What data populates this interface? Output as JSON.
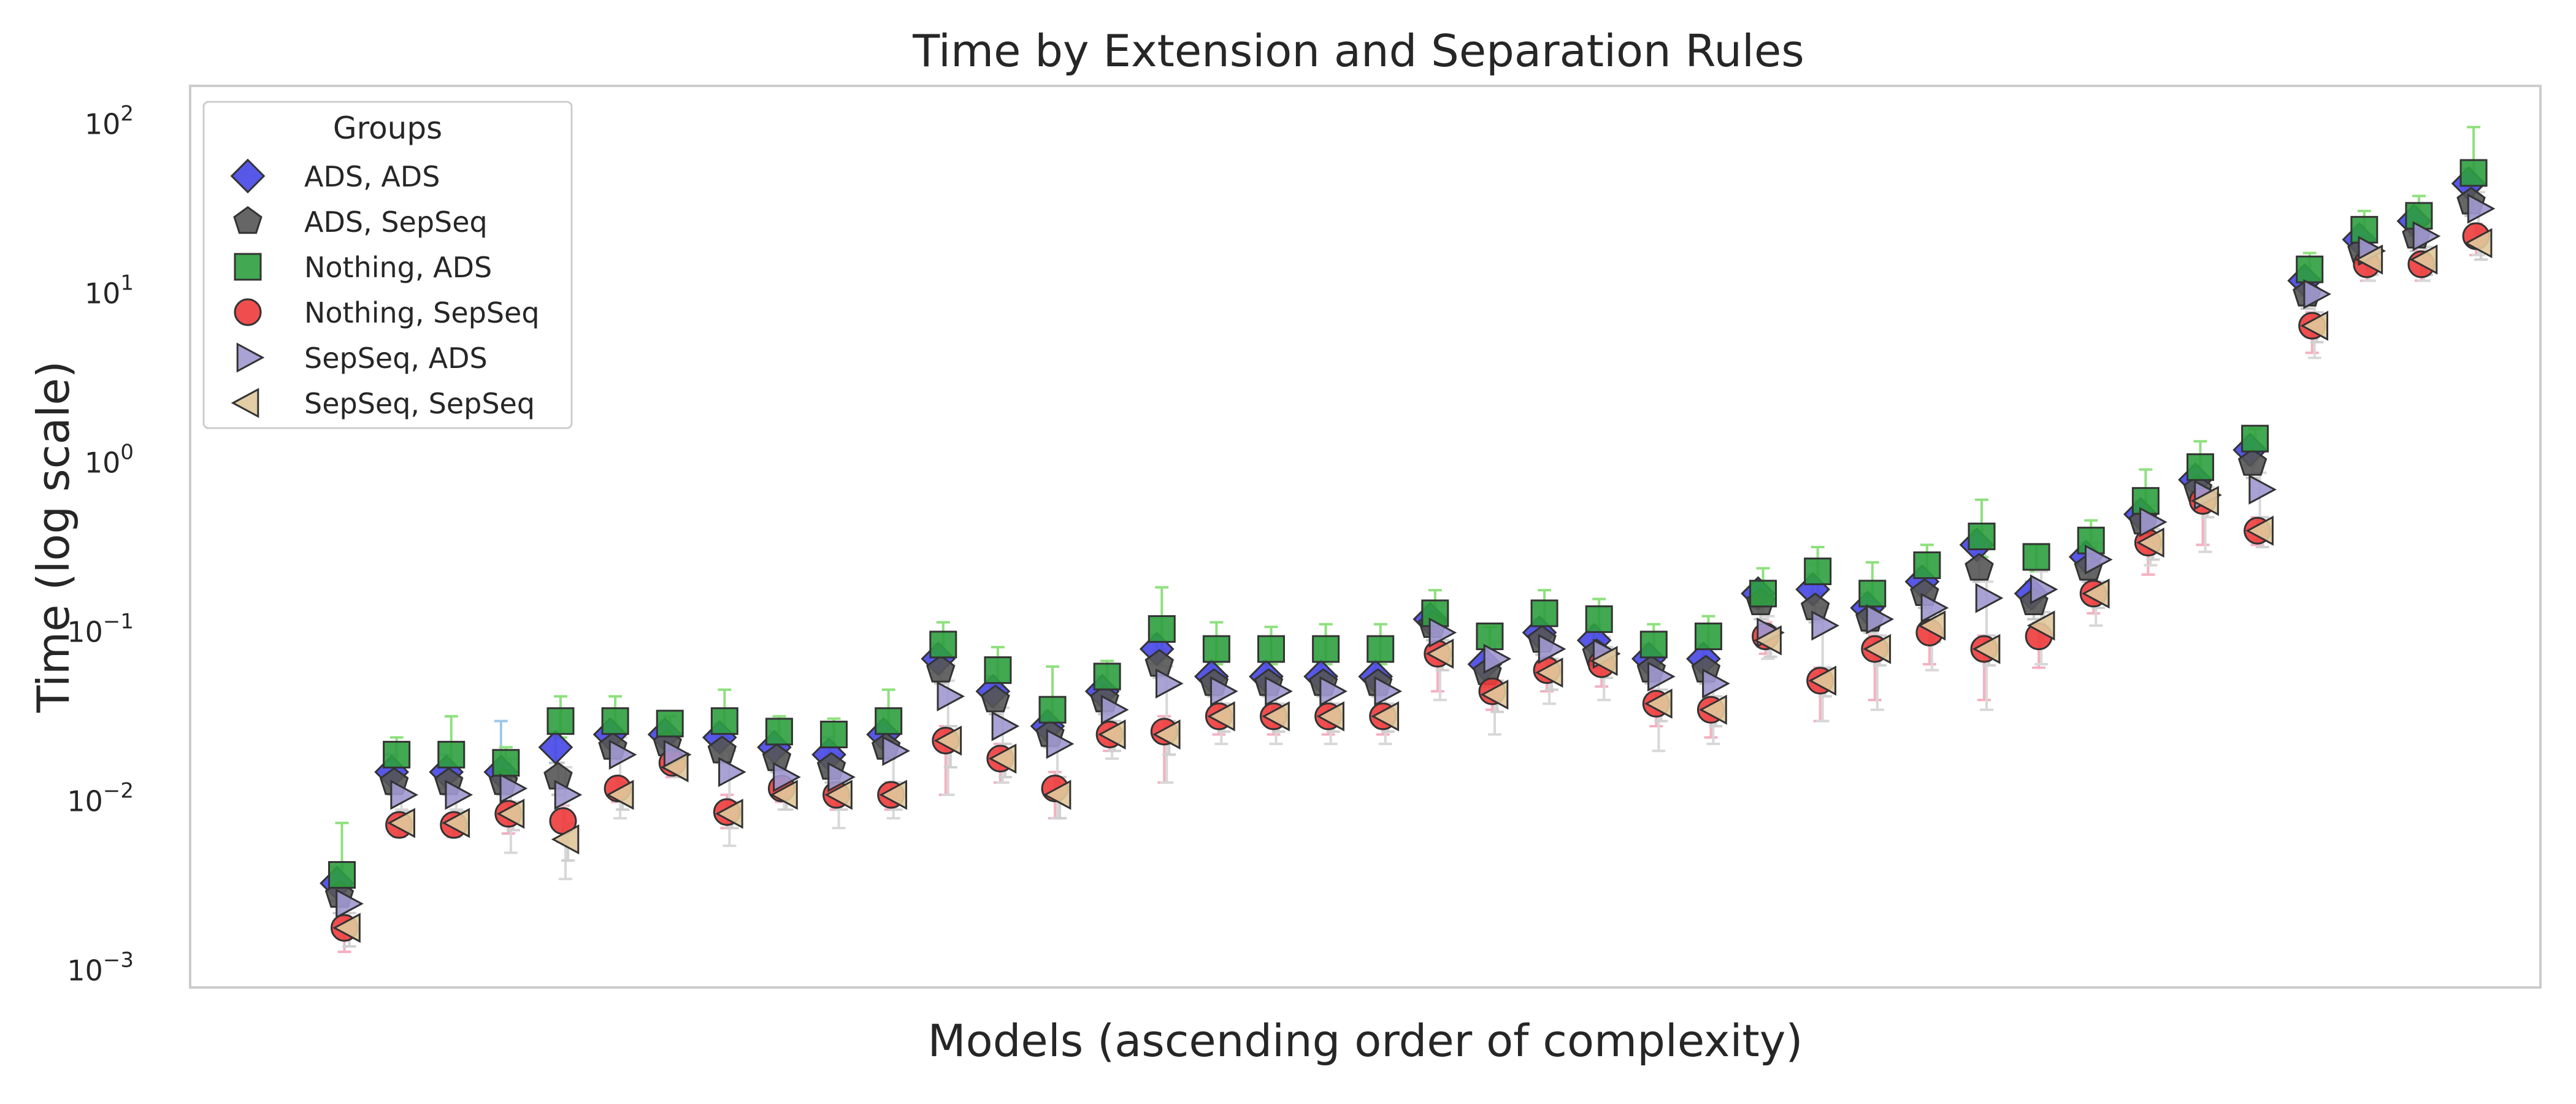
{
  "chart_data": {
    "type": "scatter",
    "title": "Time by Extension and Separation Rules",
    "xlabel": "Models (ascending order of complexity)",
    "ylabel": "Time (log scale)",
    "yscale": "log",
    "ylim": [
      0.0008,
      170
    ],
    "xlim": [
      -1.8,
      41.2
    ],
    "grid": false,
    "legend": {
      "title": "Groups",
      "placement": "top-left"
    },
    "y_ticks": [
      {
        "value": 0.001,
        "base": "10",
        "exp": "−3"
      },
      {
        "value": 0.01,
        "base": "10",
        "exp": "−2"
      },
      {
        "value": 0.1,
        "base": "10",
        "exp": "−1"
      },
      {
        "value": 1,
        "base": "10",
        "exp": "0"
      },
      {
        "value": 10,
        "base": "10",
        "exp": "1"
      },
      {
        "value": 100,
        "base": "10",
        "exp": "2"
      }
    ],
    "x": [
      1,
      2,
      3,
      4,
      5,
      6,
      7,
      8,
      9,
      10,
      11,
      12,
      13,
      14,
      15,
      16,
      17,
      18,
      19,
      20,
      21,
      22,
      23,
      24,
      25,
      26,
      27,
      28,
      29,
      30,
      31,
      32,
      33,
      34,
      35,
      36,
      37,
      38,
      39,
      40
    ],
    "series": [
      {
        "name": "ADS, ADS",
        "marker": "diamond",
        "color": "#4545e6",
        "errcolor": "#9ec8e8",
        "values": [
          0.0033,
          0.015,
          0.015,
          0.015,
          0.021,
          0.025,
          0.025,
          0.024,
          0.021,
          0.019,
          0.025,
          0.07,
          0.045,
          0.028,
          0.045,
          0.08,
          0.055,
          0.055,
          0.055,
          0.055,
          0.12,
          0.065,
          0.1,
          0.09,
          0.07,
          0.07,
          0.17,
          0.18,
          0.14,
          0.2,
          0.33,
          0.17,
          0.28,
          0.5,
          0.8,
          1.2,
          12,
          21,
          27,
          45
        ],
        "err_low": [
          0.0026,
          0.012,
          0.012,
          0.012,
          0.017,
          0.021,
          0.021,
          0.02,
          0.017,
          0.015,
          0.021,
          0.058,
          0.037,
          0.023,
          0.037,
          0.065,
          0.046,
          0.046,
          0.046,
          0.046,
          0.1,
          0.054,
          0.083,
          0.074,
          0.058,
          0.058,
          0.14,
          0.15,
          0.115,
          0.165,
          0.27,
          0.14,
          0.23,
          0.41,
          0.66,
          0.98,
          9.8,
          17,
          22,
          37
        ],
        "err_high": [
          0.0041,
          0.019,
          0.019,
          0.03,
          0.026,
          0.03,
          0.03,
          0.029,
          0.026,
          0.024,
          0.03,
          0.085,
          0.055,
          0.034,
          0.055,
          0.097,
          0.067,
          0.067,
          0.067,
          0.067,
          0.145,
          0.08,
          0.12,
          0.11,
          0.085,
          0.085,
          0.2,
          0.22,
          0.17,
          0.24,
          0.4,
          0.2,
          0.34,
          0.6,
          0.97,
          1.45,
          14.5,
          25,
          33,
          55
        ]
      },
      {
        "name": "ADS, SepSeq",
        "marker": "pentagon",
        "color": "#555555",
        "errcolor": "#c8c8c8",
        "values": [
          0.0028,
          0.013,
          0.013,
          0.013,
          0.014,
          0.021,
          0.022,
          0.02,
          0.018,
          0.016,
          0.021,
          0.06,
          0.04,
          0.025,
          0.04,
          0.065,
          0.05,
          0.05,
          0.05,
          0.05,
          0.11,
          0.058,
          0.09,
          0.075,
          0.06,
          0.06,
          0.15,
          0.14,
          0.12,
          0.17,
          0.24,
          0.15,
          0.24,
          0.45,
          0.7,
          1.0,
          10,
          18,
          22,
          35
        ],
        "err_low": [
          0.0022,
          0.011,
          0.011,
          0.011,
          0.011,
          0.018,
          0.018,
          0.017,
          0.015,
          0.013,
          0.018,
          0.05,
          0.033,
          0.021,
          0.033,
          0.054,
          0.042,
          0.042,
          0.042,
          0.042,
          0.09,
          0.048,
          0.074,
          0.062,
          0.05,
          0.05,
          0.12,
          0.115,
          0.1,
          0.14,
          0.2,
          0.12,
          0.2,
          0.37,
          0.58,
          0.82,
          8.2,
          15,
          18,
          29
        ],
        "err_high": [
          0.0034,
          0.016,
          0.016,
          0.016,
          0.017,
          0.025,
          0.027,
          0.024,
          0.022,
          0.019,
          0.025,
          0.072,
          0.048,
          0.03,
          0.048,
          0.078,
          0.06,
          0.06,
          0.06,
          0.06,
          0.13,
          0.07,
          0.108,
          0.09,
          0.072,
          0.072,
          0.18,
          0.17,
          0.145,
          0.2,
          0.29,
          0.18,
          0.29,
          0.54,
          0.84,
          1.2,
          12,
          22,
          27,
          42
        ]
      },
      {
        "name": "Nothing, ADS",
        "marker": "square",
        "color": "#2e9e3e",
        "errcolor": "#8ee07e",
        "values": [
          0.0037,
          0.019,
          0.019,
          0.017,
          0.03,
          0.03,
          0.029,
          0.03,
          0.026,
          0.025,
          0.03,
          0.085,
          0.06,
          0.035,
          0.055,
          0.105,
          0.08,
          0.08,
          0.08,
          0.08,
          0.13,
          0.095,
          0.13,
          0.12,
          0.085,
          0.095,
          0.17,
          0.23,
          0.17,
          0.25,
          0.37,
          0.28,
          0.35,
          0.6,
          0.95,
          1.4,
          14,
          24,
          29,
          52
        ],
        "err_low": [
          0.0025,
          0.015,
          0.015,
          0.014,
          0.024,
          0.024,
          0.024,
          0.024,
          0.021,
          0.021,
          0.025,
          0.07,
          0.048,
          0.028,
          0.045,
          0.07,
          0.065,
          0.065,
          0.065,
          0.065,
          0.1,
          0.08,
          0.1,
          0.095,
          0.07,
          0.08,
          0.13,
          0.17,
          0.13,
          0.2,
          0.28,
          0.23,
          0.29,
          0.48,
          0.75,
          1.15,
          11.5,
          20,
          24,
          30
        ],
        "err_high": [
          0.0075,
          0.024,
          0.032,
          0.021,
          0.042,
          0.042,
          0.032,
          0.046,
          0.032,
          0.031,
          0.046,
          0.115,
          0.082,
          0.063,
          0.068,
          0.185,
          0.115,
          0.108,
          0.112,
          0.112,
          0.178,
          0.108,
          0.178,
          0.158,
          0.112,
          0.125,
          0.24,
          0.32,
          0.26,
          0.33,
          0.61,
          0.33,
          0.46,
          0.92,
          1.35,
          1.6,
          17.5,
          31,
          38,
          97
        ]
      },
      {
        "name": "Nothing, SepSeq",
        "marker": "circle",
        "color": "#ee3b3b",
        "errcolor": "#f5b0c0",
        "values": [
          0.0018,
          0.0073,
          0.0073,
          0.0085,
          0.0077,
          0.012,
          0.017,
          0.0087,
          0.012,
          0.011,
          0.011,
          0.023,
          0.018,
          0.012,
          0.025,
          0.026,
          0.032,
          0.032,
          0.032,
          0.032,
          0.075,
          0.045,
          0.06,
          0.065,
          0.038,
          0.035,
          0.095,
          0.052,
          0.08,
          0.1,
          0.08,
          0.095,
          0.17,
          0.34,
          0.6,
          0.4,
          6.5,
          15,
          15,
          22
        ],
        "err_low": [
          0.0013,
          0.0062,
          0.0062,
          0.0065,
          0.0058,
          0.01,
          0.014,
          0.007,
          0.01,
          0.009,
          0.009,
          0.011,
          0.013,
          0.008,
          0.02,
          0.013,
          0.025,
          0.025,
          0.025,
          0.025,
          0.045,
          0.035,
          0.045,
          0.048,
          0.028,
          0.024,
          0.075,
          0.03,
          0.04,
          0.065,
          0.04,
          0.062,
          0.13,
          0.22,
          0.33,
          0.33,
          4.5,
          12,
          12,
          17
        ],
        "err_high": [
          0.0021,
          0.0085,
          0.0085,
          0.01,
          0.0095,
          0.014,
          0.02,
          0.011,
          0.014,
          0.013,
          0.013,
          0.028,
          0.022,
          0.015,
          0.03,
          0.032,
          0.038,
          0.038,
          0.038,
          0.038,
          0.09,
          0.054,
          0.072,
          0.078,
          0.046,
          0.042,
          0.115,
          0.062,
          0.096,
          0.12,
          0.096,
          0.114,
          0.2,
          0.41,
          0.72,
          0.48,
          7.8,
          18,
          18,
          26
        ]
      },
      {
        "name": "SepSeq, ADS",
        "marker": "triangle-right",
        "color": "#9f98d0",
        "errcolor": "#d8d8d8",
        "values": [
          0.0025,
          0.011,
          0.011,
          0.012,
          0.011,
          0.019,
          0.019,
          0.015,
          0.014,
          0.014,
          0.02,
          0.042,
          0.028,
          0.022,
          0.035,
          0.05,
          0.045,
          0.045,
          0.045,
          0.045,
          0.1,
          0.07,
          0.08,
          0.075,
          0.055,
          0.05,
          0.1,
          0.11,
          0.12,
          0.14,
          0.16,
          0.18,
          0.27,
          0.45,
          0.65,
          0.7,
          10,
          18,
          22,
          32
        ],
        "err_low": [
          0.0018,
          0.009,
          0.009,
          0.005,
          0.0035,
          0.008,
          0.016,
          0.0055,
          0.009,
          0.007,
          0.008,
          0.011,
          0.013,
          0.008,
          0.018,
          0.013,
          0.022,
          0.022,
          0.022,
          0.022,
          0.04,
          0.025,
          0.038,
          0.04,
          0.02,
          0.022,
          0.07,
          0.03,
          0.035,
          0.06,
          0.035,
          0.065,
          0.11,
          0.25,
          0.3,
          0.35,
          4.2,
          12,
          12,
          17
        ],
        "err_high": [
          0.0032,
          0.014,
          0.014,
          0.018,
          0.016,
          0.024,
          0.024,
          0.02,
          0.019,
          0.019,
          0.025,
          0.052,
          0.036,
          0.028,
          0.044,
          0.063,
          0.056,
          0.056,
          0.056,
          0.056,
          0.125,
          0.088,
          0.1,
          0.094,
          0.069,
          0.063,
          0.125,
          0.14,
          0.15,
          0.18,
          0.2,
          0.23,
          0.34,
          0.56,
          0.82,
          0.88,
          12.5,
          22.5,
          27.5,
          40
        ]
      },
      {
        "name": "SepSeq, SepSeq",
        "marker": "triangle-left",
        "color": "#e0c89a",
        "errcolor": "#d0d0d0",
        "values": [
          0.0018,
          0.0075,
          0.0075,
          0.0085,
          0.006,
          0.011,
          0.016,
          0.0085,
          0.011,
          0.011,
          0.011,
          0.023,
          0.018,
          0.011,
          0.025,
          0.025,
          0.032,
          0.032,
          0.032,
          0.032,
          0.075,
          0.043,
          0.058,
          0.068,
          0.038,
          0.035,
          0.09,
          0.052,
          0.08,
          0.11,
          0.08,
          0.11,
          0.17,
          0.34,
          0.6,
          0.4,
          6.5,
          16,
          16,
          20
        ],
        "err_low": [
          0.0014,
          0.0065,
          0.0065,
          0.0068,
          0.0045,
          0.009,
          0.014,
          0.007,
          0.009,
          0.009,
          0.009,
          0.016,
          0.014,
          0.008,
          0.02,
          0.019,
          0.026,
          0.026,
          0.026,
          0.026,
          0.06,
          0.034,
          0.046,
          0.054,
          0.03,
          0.028,
          0.072,
          0.042,
          0.064,
          0.088,
          0.064,
          0.088,
          0.14,
          0.27,
          0.48,
          0.32,
          5.2,
          13,
          13,
          16
        ],
        "err_high": [
          0.0022,
          0.0088,
          0.0088,
          0.01,
          0.0075,
          0.013,
          0.019,
          0.01,
          0.013,
          0.013,
          0.013,
          0.028,
          0.022,
          0.014,
          0.03,
          0.03,
          0.038,
          0.038,
          0.038,
          0.038,
          0.09,
          0.052,
          0.07,
          0.082,
          0.046,
          0.042,
          0.108,
          0.062,
          0.096,
          0.132,
          0.096,
          0.132,
          0.2,
          0.41,
          0.72,
          0.48,
          7.8,
          19,
          19,
          24
        ]
      }
    ]
  }
}
